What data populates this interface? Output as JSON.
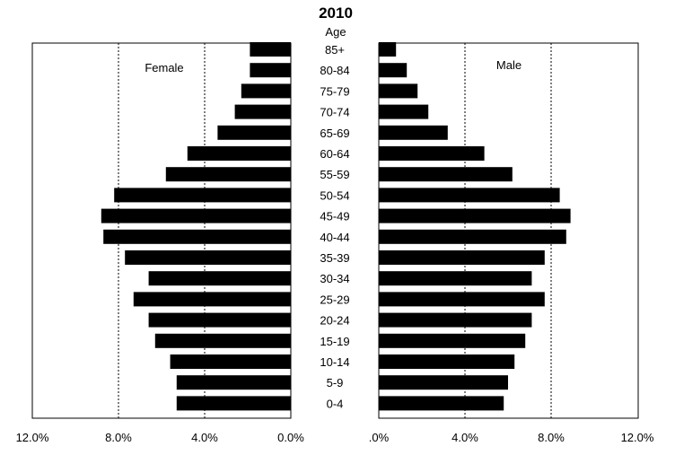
{
  "chart_data": {
    "type": "bar",
    "title": "2010",
    "age_axis_label": "Age",
    "categories": [
      "0-4",
      "5-9",
      "10-14",
      "15-19",
      "20-24",
      "25-29",
      "30-34",
      "35-39",
      "40-44",
      "45-49",
      "50-54",
      "55-59",
      "60-64",
      "65-69",
      "70-74",
      "75-79",
      "80-84",
      "85+"
    ],
    "series": [
      {
        "name": "Female",
        "values": [
          5.3,
          5.3,
          5.6,
          6.3,
          6.6,
          7.3,
          6.6,
          7.7,
          8.7,
          8.8,
          8.2,
          5.8,
          4.8,
          3.4,
          2.6,
          2.3,
          1.9,
          1.9
        ]
      },
      {
        "name": "Male",
        "values": [
          5.8,
          6.0,
          6.3,
          6.8,
          7.1,
          7.7,
          7.1,
          7.7,
          8.7,
          8.9,
          8.4,
          6.2,
          4.9,
          3.2,
          2.3,
          1.8,
          1.3,
          0.8
        ]
      }
    ],
    "xlim": [
      0,
      12
    ],
    "x_ticks_left": [
      "12.0%",
      "8.0%",
      "4.0%",
      "0.0%"
    ],
    "x_ticks_right": [
      ".0%",
      "4.0%",
      "8.0%",
      "12.0%"
    ],
    "grid": true
  }
}
